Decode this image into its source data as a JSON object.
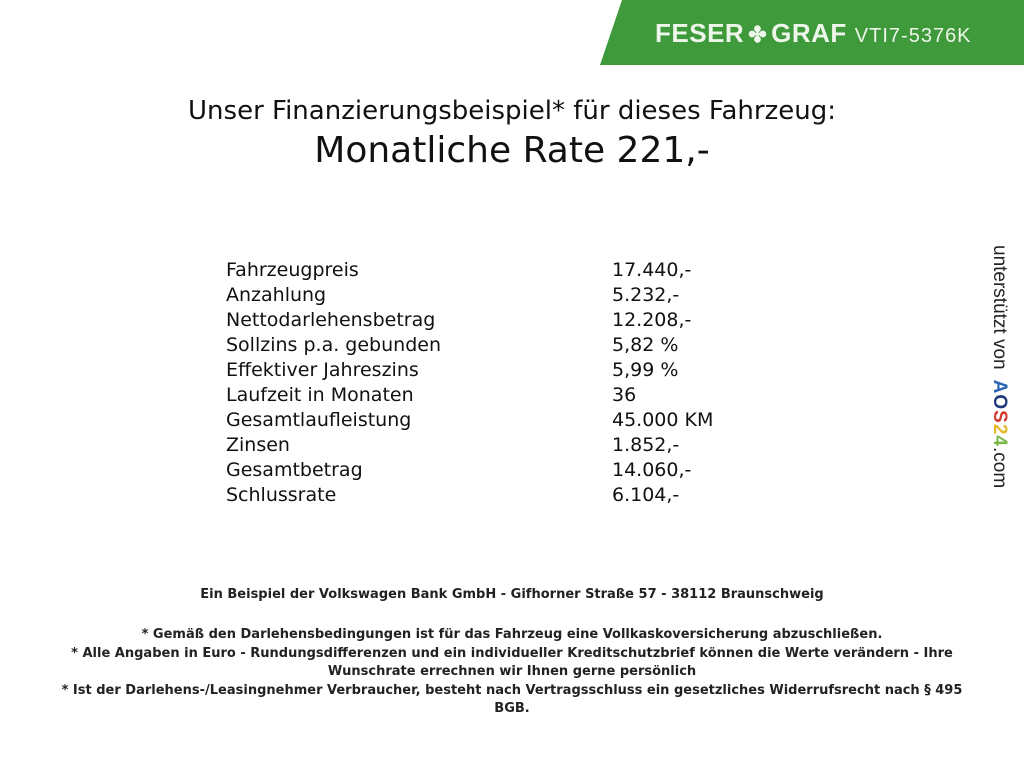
{
  "header": {
    "brand_left": "FESER",
    "brand_right": "GRAF",
    "vehicle_code": "VTI7-5376K",
    "brand_color": "#3f9a3c",
    "logo_icon": "clover-icon"
  },
  "title": {
    "line1": "Unser Finanzierungsbeispiel* für dieses Fahrzeug:",
    "line2": "Monatliche Rate 221,-"
  },
  "rows": [
    {
      "label": "Fahrzeugpreis",
      "value": "17.440,-"
    },
    {
      "label": "Anzahlung",
      "value": "5.232,-"
    },
    {
      "label": "Nettodarlehensbetrag",
      "value": "12.208,-"
    },
    {
      "label": "Sollzins p.a. gebunden",
      "value": "5,82 %"
    },
    {
      "label": "Effektiver Jahreszins",
      "value": "5,99 %"
    },
    {
      "label": "Laufzeit in Monaten",
      "value": "36"
    },
    {
      "label": "Gesamtlaufleistung",
      "value": "45.000 KM"
    },
    {
      "label": "Zinsen",
      "value": "1.852,-"
    },
    {
      "label": "Gesamtbetrag",
      "value": "14.060,-"
    },
    {
      "label": "Schlussrate",
      "value": "6.104,-"
    }
  ],
  "side": {
    "text": "unterstützt von",
    "logo": "AOS24",
    "suffix": ".com"
  },
  "footer": {
    "bank": "Ein Beispiel der Volkswagen Bank GmbH - Gifhorner Straße 57 - 38112 Braunschweig",
    "notes": [
      "* Gemäß den Darlehensbedingungen ist für das Fahrzeug eine Vollkaskoversicherung abzuschließen.",
      "* Alle Angaben in Euro - Rundungsdifferenzen und ein individueller Kreditschutzbrief können die Werte verändern - Ihre Wunschrate errechnen wir Ihnen gerne persönlich",
      "* Ist der Darlehens-/Leasingnehmer Verbraucher, besteht nach Vertragsschluss ein gesetzliches Widerrufsrecht nach § 495 BGB."
    ]
  }
}
